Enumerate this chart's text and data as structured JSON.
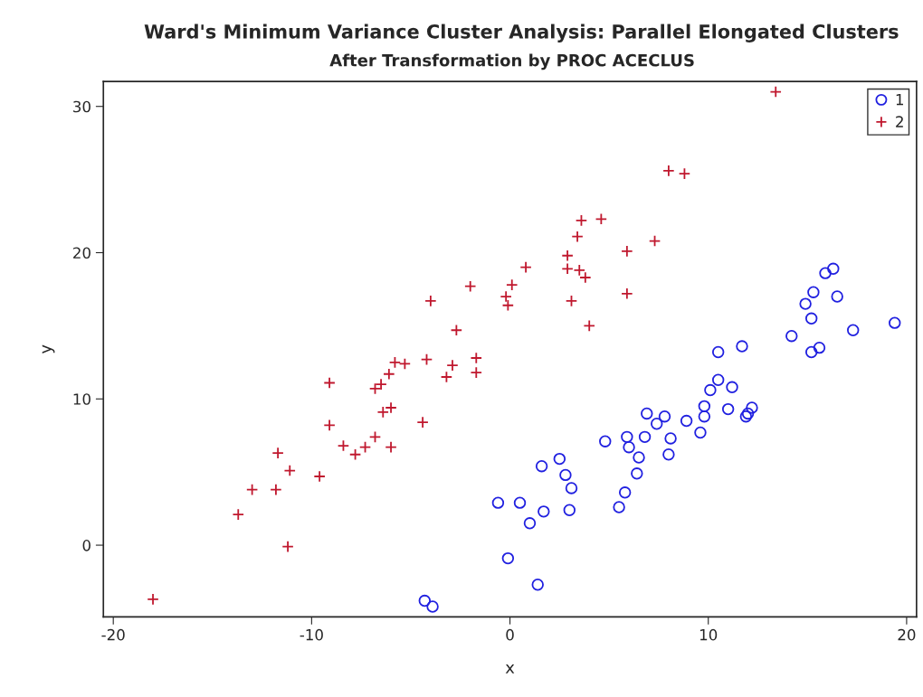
{
  "chart_data": {
    "type": "scatter",
    "title": "Ward's Minimum Variance Cluster Analysis: Parallel Elongated Clusters",
    "subtitle": "After Transformation by PROC ACECLUS",
    "xlabel": "x",
    "ylabel": "y",
    "xlim": [
      -20.5,
      20.5
    ],
    "ylim": [
      -4.9,
      31.7
    ],
    "xticks": [
      -20,
      -10,
      0,
      10,
      20
    ],
    "yticks": [
      0,
      10,
      20,
      30
    ],
    "grid": false,
    "legend": "top right",
    "series": [
      {
        "name": "1",
        "color": "#2020e0",
        "marker": "circle",
        "x": [
          -4.3,
          -3.9,
          -0.6,
          -0.1,
          0.5,
          1.0,
          1.4,
          1.6,
          1.7,
          2.5,
          2.8,
          3.0,
          3.1,
          4.8,
          5.5,
          5.8,
          5.9,
          6.0,
          6.4,
          6.5,
          6.8,
          6.9,
          7.4,
          7.8,
          8.0,
          8.1,
          8.9,
          9.6,
          9.8,
          9.8,
          10.1,
          10.5,
          10.5,
          11.0,
          11.2,
          11.7,
          11.9,
          12.0,
          12.2,
          14.2,
          14.9,
          15.2,
          15.2,
          15.3,
          15.6,
          15.9,
          16.3,
          16.5,
          17.3,
          19.4
        ],
        "values": [
          -3.8,
          -4.2,
          2.9,
          -0.9,
          2.9,
          1.5,
          -2.7,
          5.4,
          2.3,
          5.9,
          4.8,
          2.4,
          3.9,
          7.1,
          2.6,
          3.6,
          7.4,
          6.7,
          4.9,
          6.0,
          7.4,
          9.0,
          8.3,
          8.8,
          6.2,
          7.3,
          8.5,
          7.7,
          8.8,
          9.5,
          10.6,
          13.2,
          11.3,
          9.3,
          10.8,
          13.6,
          8.8,
          9.0,
          9.4,
          14.3,
          16.5,
          13.2,
          15.5,
          17.3,
          13.5,
          18.6,
          18.9,
          17.0,
          14.7,
          15.2
        ]
      },
      {
        "name": "2",
        "color": "#c0182e",
        "marker": "cross",
        "x": [
          -18.0,
          -13.7,
          -13.0,
          -11.8,
          -11.7,
          -11.2,
          -11.1,
          -9.6,
          -9.1,
          -9.1,
          -8.4,
          -7.8,
          -7.3,
          -6.8,
          -6.8,
          -6.5,
          -6.4,
          -6.1,
          -6.0,
          -6.0,
          -5.8,
          -5.3,
          -4.4,
          -4.2,
          -4.0,
          -3.2,
          -2.9,
          -2.7,
          -2.0,
          -1.7,
          -1.7,
          -0.2,
          -0.1,
          0.1,
          0.8,
          2.9,
          2.9,
          3.1,
          3.4,
          3.5,
          3.6,
          3.8,
          4.0,
          4.6,
          5.9,
          5.9,
          7.3,
          8.0,
          8.8,
          13.4
        ],
        "values": [
          -3.7,
          2.1,
          3.8,
          3.8,
          6.3,
          -0.1,
          5.1,
          4.7,
          11.1,
          8.2,
          6.8,
          6.2,
          6.7,
          7.4,
          10.7,
          11.0,
          9.1,
          11.7,
          9.4,
          6.7,
          12.5,
          12.4,
          8.4,
          12.7,
          16.7,
          11.5,
          12.3,
          14.7,
          17.7,
          12.8,
          11.8,
          17.0,
          16.4,
          17.8,
          19.0,
          18.9,
          19.8,
          16.7,
          21.1,
          18.8,
          22.2,
          18.3,
          15.0,
          22.3,
          20.1,
          17.2,
          20.8,
          25.6,
          25.4,
          31.0
        ]
      }
    ]
  }
}
